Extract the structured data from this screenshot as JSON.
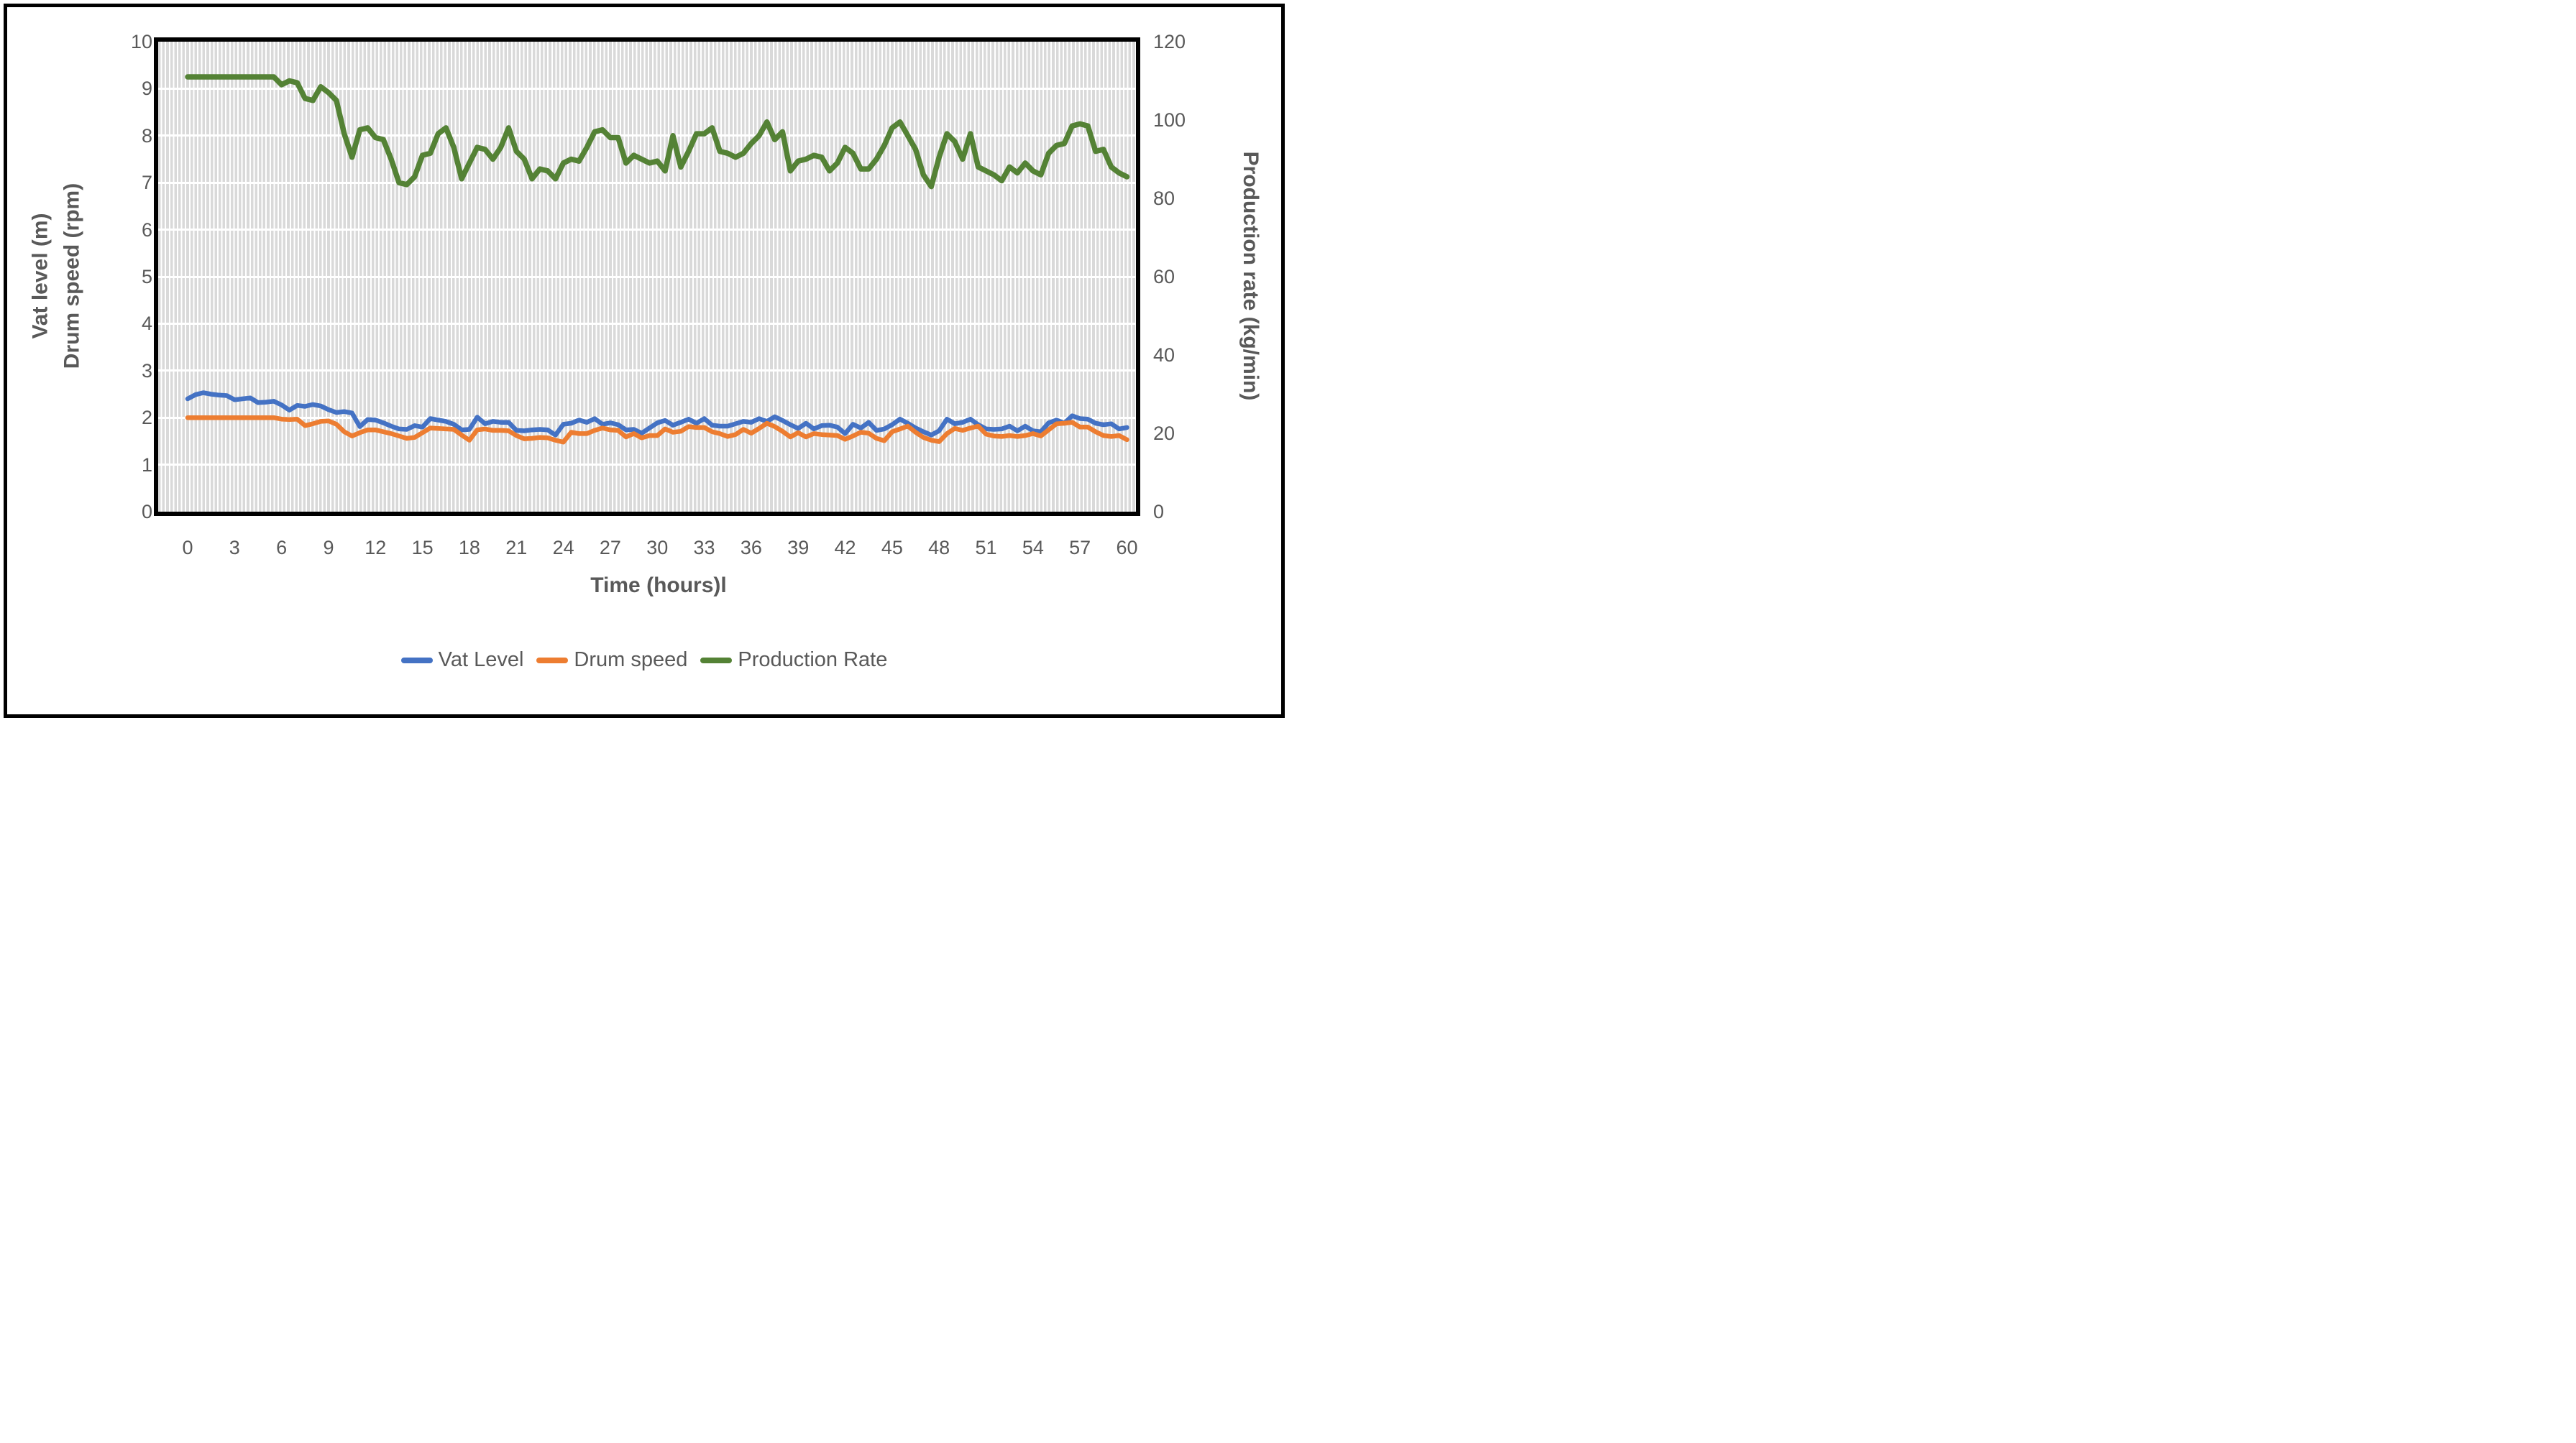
{
  "figure": {
    "border_color": "#000000",
    "background_color": "#ffffff",
    "plot_area_stripe_color": "#d9d9d9",
    "text_color": "#595959"
  },
  "chart_data": {
    "type": "line",
    "title": "",
    "xlabel": "Time (hours)l",
    "ylabel_left_line1": "Vat level (m)",
    "ylabel_left_line2": "Drum speed (rpm)",
    "ylabel_right": "Production rate (kg/min)",
    "xlim": [
      0,
      60
    ],
    "ylim_left": [
      0,
      10
    ],
    "ylim_right": [
      0,
      120
    ],
    "x_ticks": [
      0,
      3,
      6,
      9,
      12,
      15,
      18,
      21,
      24,
      27,
      30,
      33,
      36,
      39,
      42,
      45,
      48,
      51,
      54,
      57,
      60
    ],
    "y_ticks_left": [
      0,
      1,
      2,
      3,
      4,
      5,
      6,
      7,
      8,
      9,
      10
    ],
    "y_ticks_right": [
      0,
      20,
      40,
      60,
      80,
      100,
      120
    ],
    "grid": "horizontal white gridlines on gray striped plot area",
    "legend_position": "bottom",
    "x_start": 0,
    "x_step": 0.5,
    "series": [
      {
        "name": "Vat Level",
        "axis": "left",
        "color": "#4472C4",
        "values": [
          2.4,
          2.49,
          2.53,
          2.5,
          2.48,
          2.47,
          2.38,
          2.4,
          2.42,
          2.32,
          2.33,
          2.35,
          2.27,
          2.16,
          2.26,
          2.24,
          2.28,
          2.25,
          2.17,
          2.11,
          2.13,
          2.1,
          1.81,
          1.96,
          1.95,
          1.89,
          1.82,
          1.76,
          1.75,
          1.83,
          1.8,
          1.98,
          1.95,
          1.92,
          1.86,
          1.74,
          1.75,
          2.01,
          1.87,
          1.92,
          1.9,
          1.9,
          1.73,
          1.72,
          1.74,
          1.75,
          1.74,
          1.63,
          1.86,
          1.88,
          1.95,
          1.9,
          1.98,
          1.86,
          1.89,
          1.85,
          1.74,
          1.75,
          1.67,
          1.78,
          1.89,
          1.94,
          1.84,
          1.9,
          1.97,
          1.88,
          1.98,
          1.84,
          1.82,
          1.82,
          1.87,
          1.92,
          1.9,
          1.98,
          1.92,
          2.02,
          1.94,
          1.85,
          1.77,
          1.88,
          1.76,
          1.83,
          1.84,
          1.8,
          1.66,
          1.86,
          1.78,
          1.9,
          1.73,
          1.76,
          1.85,
          1.97,
          1.88,
          1.78,
          1.7,
          1.63,
          1.72,
          1.97,
          1.87,
          1.9,
          1.97,
          1.85,
          1.76,
          1.75,
          1.76,
          1.82,
          1.72,
          1.82,
          1.72,
          1.7,
          1.89,
          1.95,
          1.88,
          2.04,
          1.98,
          1.97,
          1.88,
          1.85,
          1.87,
          1.76,
          1.79
        ]
      },
      {
        "name": "Drum speed",
        "axis": "left",
        "color": "#ED7D31",
        "values": [
          2.0,
          2.0,
          2.0,
          2.0,
          2.0,
          2.0,
          2.0,
          2.0,
          2.0,
          2.0,
          2.0,
          2.0,
          1.97,
          1.96,
          1.97,
          1.83,
          1.87,
          1.92,
          1.93,
          1.86,
          1.7,
          1.61,
          1.68,
          1.74,
          1.74,
          1.7,
          1.66,
          1.61,
          1.56,
          1.58,
          1.68,
          1.78,
          1.77,
          1.76,
          1.75,
          1.63,
          1.52,
          1.74,
          1.76,
          1.73,
          1.73,
          1.72,
          1.62,
          1.55,
          1.56,
          1.58,
          1.57,
          1.52,
          1.48,
          1.69,
          1.66,
          1.66,
          1.73,
          1.78,
          1.74,
          1.73,
          1.59,
          1.66,
          1.57,
          1.62,
          1.62,
          1.76,
          1.69,
          1.71,
          1.81,
          1.79,
          1.79,
          1.7,
          1.66,
          1.6,
          1.64,
          1.75,
          1.67,
          1.77,
          1.88,
          1.81,
          1.71,
          1.59,
          1.68,
          1.59,
          1.66,
          1.64,
          1.63,
          1.62,
          1.54,
          1.61,
          1.69,
          1.67,
          1.56,
          1.51,
          1.7,
          1.76,
          1.82,
          1.69,
          1.58,
          1.52,
          1.49,
          1.66,
          1.77,
          1.73,
          1.78,
          1.82,
          1.65,
          1.61,
          1.6,
          1.62,
          1.6,
          1.62,
          1.66,
          1.61,
          1.74,
          1.87,
          1.88,
          1.9,
          1.8,
          1.8,
          1.7,
          1.62,
          1.6,
          1.62,
          1.53
        ]
      },
      {
        "name": "Production Rate",
        "axis": "right",
        "color": "#548235",
        "values": [
          111,
          111,
          111,
          111,
          111,
          111,
          111,
          111,
          111,
          111,
          111,
          111,
          109,
          110,
          109.5,
          105.5,
          105,
          108.5,
          107,
          105,
          96.5,
          90.5,
          97.5,
          98,
          95.5,
          95,
          90,
          84,
          83.5,
          85.5,
          91,
          91.5,
          96.5,
          98,
          93,
          85,
          89,
          93,
          92.5,
          90,
          93,
          98,
          92,
          90,
          85,
          87.5,
          87,
          85,
          89,
          90,
          89.5,
          93,
          97,
          97.5,
          95.5,
          95.5,
          89,
          91,
          90,
          89,
          89.5,
          87,
          96,
          88,
          92,
          96.5,
          96.5,
          98,
          92,
          91.5,
          90.5,
          91.5,
          94,
          96,
          99.5,
          95,
          97,
          87,
          89.5,
          90,
          91,
          90.5,
          87,
          89,
          93,
          91.5,
          87.5,
          87.5,
          90,
          93.5,
          98,
          99.5,
          96,
          92.5,
          86,
          83,
          90.5,
          96.5,
          94.5,
          90,
          96.5,
          88,
          87,
          86,
          84.5,
          88,
          86.5,
          89,
          87,
          86,
          91.5,
          93.5,
          94,
          98.5,
          99,
          98.5,
          92,
          92.5,
          88,
          86.5,
          85.5
        ]
      }
    ]
  }
}
